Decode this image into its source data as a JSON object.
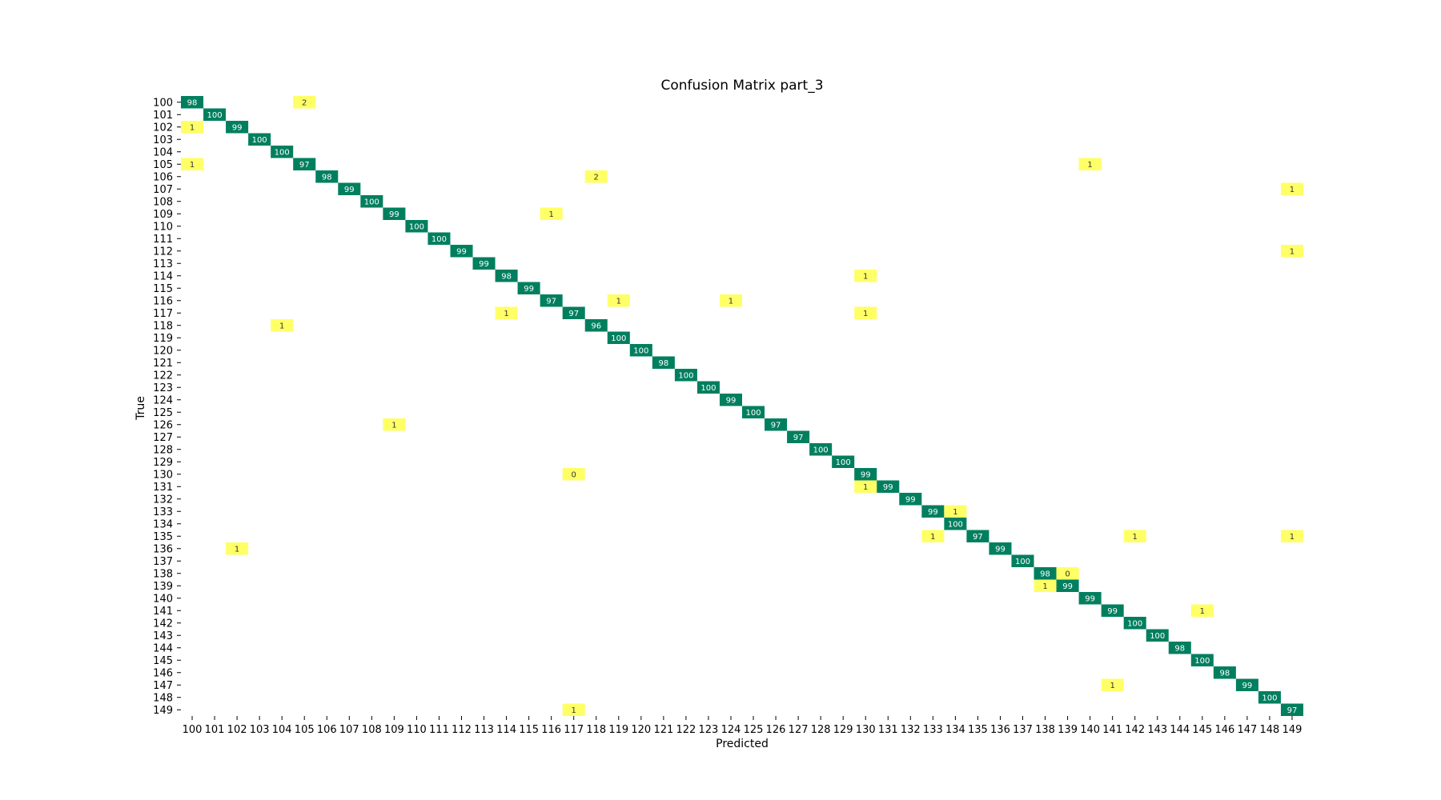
{
  "chart_data": {
    "type": "heatmap",
    "title": "Confusion Matrix part_3",
    "xlabel": "Predicted",
    "ylabel": "True",
    "labels": [
      "100",
      "101",
      "102",
      "103",
      "104",
      "105",
      "106",
      "107",
      "108",
      "109",
      "110",
      "111",
      "112",
      "113",
      "114",
      "115",
      "116",
      "117",
      "118",
      "119",
      "120",
      "121",
      "122",
      "123",
      "124",
      "125",
      "126",
      "127",
      "128",
      "129",
      "130",
      "131",
      "132",
      "133",
      "134",
      "135",
      "136",
      "137",
      "138",
      "139",
      "140",
      "141",
      "142",
      "143",
      "144",
      "145",
      "146",
      "147",
      "148",
      "149"
    ],
    "diagonal_color": "#007f5f",
    "offdiagonal_color": "#ffff66",
    "colorbar": false,
    "cells": [
      {
        "true": "100",
        "pred": "100",
        "value": 98
      },
      {
        "true": "100",
        "pred": "105",
        "value": 2
      },
      {
        "true": "101",
        "pred": "101",
        "value": 100
      },
      {
        "true": "102",
        "pred": "100",
        "value": 1
      },
      {
        "true": "102",
        "pred": "102",
        "value": 99
      },
      {
        "true": "103",
        "pred": "103",
        "value": 100
      },
      {
        "true": "104",
        "pred": "104",
        "value": 100
      },
      {
        "true": "105",
        "pred": "100",
        "value": 1
      },
      {
        "true": "105",
        "pred": "105",
        "value": 97
      },
      {
        "true": "105",
        "pred": "140",
        "value": 1
      },
      {
        "true": "106",
        "pred": "106",
        "value": 98
      },
      {
        "true": "106",
        "pred": "118",
        "value": 2
      },
      {
        "true": "107",
        "pred": "107",
        "value": 99
      },
      {
        "true": "107",
        "pred": "149",
        "value": 1
      },
      {
        "true": "108",
        "pred": "108",
        "value": 100
      },
      {
        "true": "109",
        "pred": "109",
        "value": 99
      },
      {
        "true": "109",
        "pred": "116",
        "value": 1
      },
      {
        "true": "110",
        "pred": "110",
        "value": 100
      },
      {
        "true": "111",
        "pred": "111",
        "value": 100
      },
      {
        "true": "112",
        "pred": "112",
        "value": 99
      },
      {
        "true": "112",
        "pred": "149",
        "value": 1
      },
      {
        "true": "113",
        "pred": "113",
        "value": 99
      },
      {
        "true": "114",
        "pred": "114",
        "value": 98
      },
      {
        "true": "114",
        "pred": "130",
        "value": 1
      },
      {
        "true": "115",
        "pred": "115",
        "value": 99
      },
      {
        "true": "116",
        "pred": "116",
        "value": 97
      },
      {
        "true": "116",
        "pred": "119",
        "value": 1
      },
      {
        "true": "116",
        "pred": "124",
        "value": 1
      },
      {
        "true": "117",
        "pred": "114",
        "value": 1
      },
      {
        "true": "117",
        "pred": "117",
        "value": 97
      },
      {
        "true": "117",
        "pred": "130",
        "value": 1
      },
      {
        "true": "118",
        "pred": "104",
        "value": 1
      },
      {
        "true": "118",
        "pred": "118",
        "value": 96
      },
      {
        "true": "119",
        "pred": "119",
        "value": 100
      },
      {
        "true": "120",
        "pred": "120",
        "value": 100
      },
      {
        "true": "121",
        "pred": "121",
        "value": 98
      },
      {
        "true": "122",
        "pred": "122",
        "value": 100
      },
      {
        "true": "123",
        "pred": "123",
        "value": 100
      },
      {
        "true": "124",
        "pred": "124",
        "value": 99
      },
      {
        "true": "125",
        "pred": "125",
        "value": 100
      },
      {
        "true": "126",
        "pred": "109",
        "value": 1
      },
      {
        "true": "126",
        "pred": "126",
        "value": 97
      },
      {
        "true": "127",
        "pred": "127",
        "value": 97
      },
      {
        "true": "128",
        "pred": "128",
        "value": 100
      },
      {
        "true": "129",
        "pred": "129",
        "value": 100
      },
      {
        "true": "130",
        "pred": "117",
        "value": 0
      },
      {
        "true": "130",
        "pred": "130",
        "value": 99
      },
      {
        "true": "131",
        "pred": "130",
        "value": 1
      },
      {
        "true": "131",
        "pred": "131",
        "value": 99
      },
      {
        "true": "132",
        "pred": "132",
        "value": 99
      },
      {
        "true": "133",
        "pred": "133",
        "value": 99
      },
      {
        "true": "133",
        "pred": "134",
        "value": 1
      },
      {
        "true": "134",
        "pred": "134",
        "value": 100
      },
      {
        "true": "135",
        "pred": "133",
        "value": 1
      },
      {
        "true": "135",
        "pred": "135",
        "value": 97
      },
      {
        "true": "135",
        "pred": "142",
        "value": 1
      },
      {
        "true": "135",
        "pred": "149",
        "value": 1
      },
      {
        "true": "136",
        "pred": "102",
        "value": 1
      },
      {
        "true": "136",
        "pred": "136",
        "value": 99
      },
      {
        "true": "137",
        "pred": "137",
        "value": 100
      },
      {
        "true": "138",
        "pred": "138",
        "value": 98
      },
      {
        "true": "138",
        "pred": "139",
        "value": 0
      },
      {
        "true": "139",
        "pred": "138",
        "value": 1
      },
      {
        "true": "139",
        "pred": "139",
        "value": 99
      },
      {
        "true": "140",
        "pred": "140",
        "value": 99
      },
      {
        "true": "141",
        "pred": "141",
        "value": 99
      },
      {
        "true": "141",
        "pred": "145",
        "value": 1
      },
      {
        "true": "142",
        "pred": "142",
        "value": 100
      },
      {
        "true": "143",
        "pred": "143",
        "value": 100
      },
      {
        "true": "144",
        "pred": "144",
        "value": 98
      },
      {
        "true": "145",
        "pred": "145",
        "value": 100
      },
      {
        "true": "146",
        "pred": "146",
        "value": 98
      },
      {
        "true": "147",
        "pred": "141",
        "value": 1
      },
      {
        "true": "147",
        "pred": "147",
        "value": 99
      },
      {
        "true": "148",
        "pred": "148",
        "value": 100
      },
      {
        "true": "149",
        "pred": "117",
        "value": 1
      },
      {
        "true": "149",
        "pred": "149",
        "value": 97
      }
    ]
  }
}
